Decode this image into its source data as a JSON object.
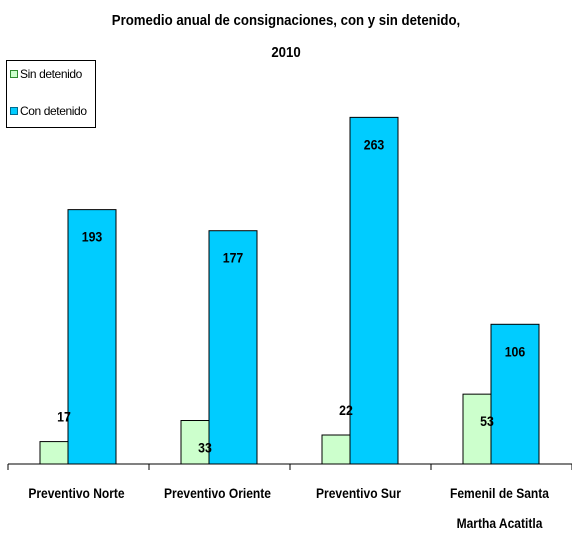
{
  "chart_data": {
    "type": "bar",
    "title_lines": [
      "Promedio anual de consignaciones, con y sin detenido,",
      "2010"
    ],
    "categories": [
      [
        "Preventivo Norte"
      ],
      [
        "Preventivo Oriente"
      ],
      [
        "Preventivo Sur"
      ],
      [
        "Femenil de Santa",
        "Martha Acatitla"
      ]
    ],
    "series": [
      {
        "name": "Sin detenido",
        "values": [
          17,
          33,
          22,
          53
        ],
        "color": "#ccffcc",
        "stroke": "#000000"
      },
      {
        "name": "Con detenido",
        "values": [
          193,
          177,
          263,
          106
        ],
        "color": "#00ccff",
        "stroke": "#000000"
      }
    ],
    "ylim": [
      0,
      300
    ],
    "grid": false,
    "legend_position": "top-left",
    "xlabel": "",
    "ylabel": ""
  }
}
